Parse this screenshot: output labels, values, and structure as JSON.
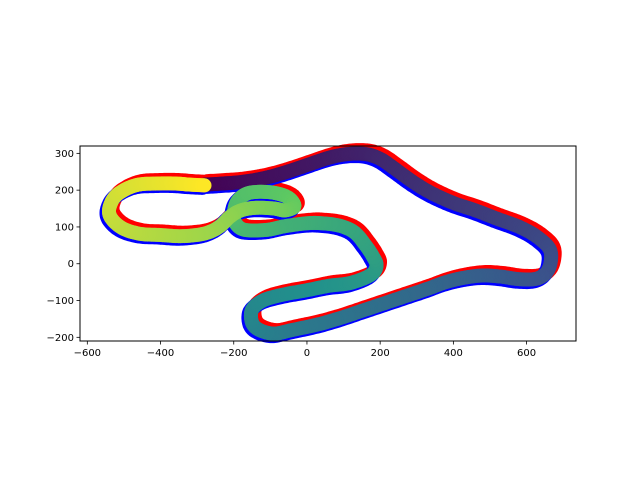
{
  "chart_data": {
    "type": "scatter",
    "title": "",
    "xlabel": "",
    "ylabel": "",
    "xlim": [
      -620,
      735
    ],
    "ylim": [
      -210,
      320
    ],
    "aspect": "equal",
    "grid": false,
    "colormap": "viridis",
    "x_ticks": [
      -600,
      -400,
      -200,
      0,
      200,
      400,
      600
    ],
    "y_ticks": [
      -200,
      -100,
      0,
      100,
      200,
      300
    ],
    "x_tick_labels": [
      "−600",
      "−400",
      "−200",
      "0",
      "200",
      "400",
      "600"
    ],
    "y_tick_labels": [
      "−200",
      "−100",
      "0",
      "100",
      "200",
      "300"
    ],
    "boundaries": [
      {
        "color": "#ff0000",
        "offset": [
          3,
          -3
        ]
      },
      {
        "color": "#0000ff",
        "offset": [
          -2,
          2
        ]
      }
    ],
    "track_points": [
      [
        -280,
        215
      ],
      [
        -230,
        218
      ],
      [
        -180,
        222
      ],
      [
        -120,
        232
      ],
      [
        -60,
        248
      ],
      [
        0,
        268
      ],
      [
        60,
        288
      ],
      [
        110,
        298
      ],
      [
        160,
        298
      ],
      [
        200,
        285
      ],
      [
        240,
        258
      ],
      [
        290,
        222
      ],
      [
        340,
        192
      ],
      [
        400,
        165
      ],
      [
        460,
        145
      ],
      [
        520,
        122
      ],
      [
        580,
        100
      ],
      [
        630,
        72
      ],
      [
        665,
        35
      ],
      [
        660,
        -15
      ],
      [
        630,
        -40
      ],
      [
        580,
        -42
      ],
      [
        530,
        -35
      ],
      [
        480,
        -32
      ],
      [
        430,
        -38
      ],
      [
        380,
        -50
      ],
      [
        330,
        -68
      ],
      [
        270,
        -88
      ],
      [
        210,
        -108
      ],
      [
        150,
        -128
      ],
      [
        90,
        -148
      ],
      [
        30,
        -165
      ],
      [
        -40,
        -180
      ],
      [
        -90,
        -190
      ],
      [
        -130,
        -180
      ],
      [
        -150,
        -160
      ],
      [
        -150,
        -125
      ],
      [
        -120,
        -100
      ],
      [
        -70,
        -85
      ],
      [
        0,
        -72
      ],
      [
        60,
        -60
      ],
      [
        120,
        -52
      ],
      [
        175,
        -30
      ],
      [
        190,
        -5
      ],
      [
        180,
        20
      ],
      [
        160,
        50
      ],
      [
        130,
        85
      ],
      [
        90,
        103
      ],
      [
        40,
        110
      ],
      [
        0,
        110
      ],
      [
        -60,
        102
      ],
      [
        -110,
        92
      ],
      [
        -170,
        92
      ],
      [
        -195,
        110
      ],
      [
        -200,
        135
      ],
      [
        -190,
        170
      ],
      [
        -160,
        192
      ],
      [
        -110,
        195
      ],
      [
        -70,
        188
      ],
      [
        -45,
        175
      ],
      [
        -35,
        155
      ],
      [
        -60,
        145
      ],
      [
        -90,
        150
      ],
      [
        -140,
        152
      ],
      [
        -180,
        145
      ],
      [
        -210,
        128
      ],
      [
        -240,
        100
      ],
      [
        -280,
        82
      ],
      [
        -340,
        75
      ],
      [
        -400,
        78
      ],
      [
        -460,
        82
      ],
      [
        -510,
        100
      ],
      [
        -540,
        135
      ],
      [
        -530,
        175
      ],
      [
        -500,
        200
      ],
      [
        -460,
        215
      ],
      [
        -410,
        218
      ],
      [
        -360,
        218
      ],
      [
        -320,
        215
      ],
      [
        -280,
        213
      ]
    ]
  }
}
